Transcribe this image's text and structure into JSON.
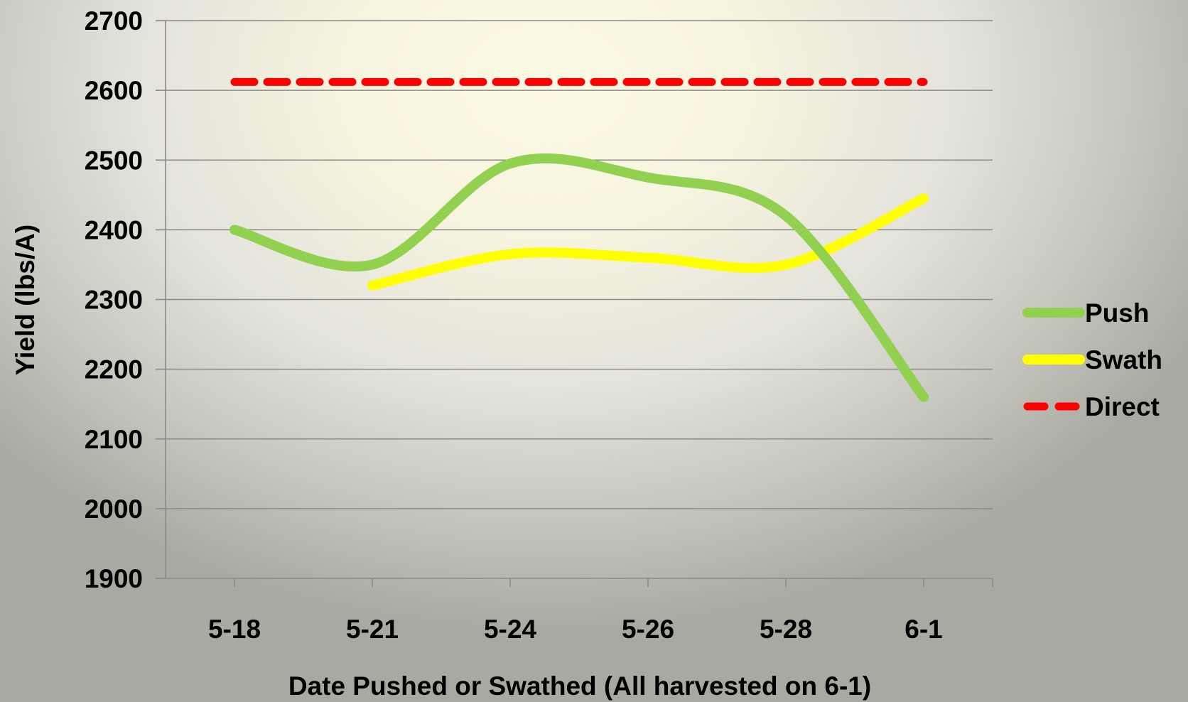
{
  "chart_data": {
    "type": "line",
    "categories": [
      "5-18",
      "5-21",
      "5-24",
      "5-26",
      "5-28",
      "6-1"
    ],
    "xlabel": "Date Pushed or Swathed (All harvested on 6-1)",
    "ylabel": "Yield (lbs/A)",
    "ylim": [
      1900,
      2700
    ],
    "yticks": [
      1900,
      2000,
      2100,
      2200,
      2300,
      2400,
      2500,
      2600,
      2700
    ],
    "grid": true,
    "legend_position": "right",
    "series": [
      {
        "name": "Push",
        "color": "#92d050",
        "style": "smooth",
        "values": [
          2400,
          2350,
          2495,
          2475,
          2420,
          2160
        ]
      },
      {
        "name": "Swath",
        "color": "#ffff00",
        "style": "smooth",
        "values": [
          null,
          2320,
          2365,
          2360,
          2350,
          2445
        ]
      },
      {
        "name": "Direct",
        "color": "#ff0000",
        "style": "dashed",
        "values": [
          2612,
          2612,
          2612,
          2612,
          2612,
          2612
        ]
      }
    ]
  }
}
